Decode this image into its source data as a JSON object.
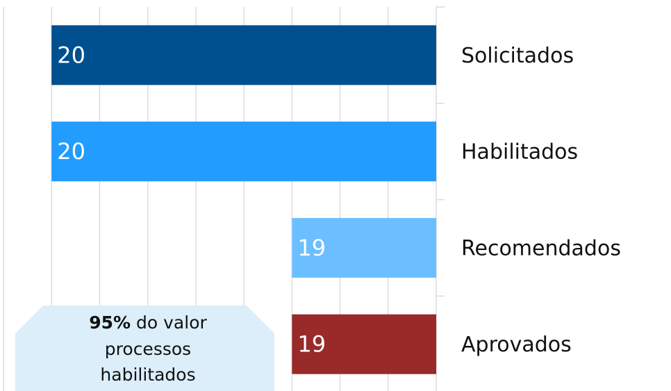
{
  "chart_data": {
    "type": "bar",
    "orientation": "horizontal",
    "categories": [
      "Solicitados",
      "Habilitados",
      "Recomendados",
      "Aprovados"
    ],
    "values": [
      20,
      20,
      19,
      19
    ],
    "colors": [
      "#004f8f",
      "#229cff",
      "#6cbfff",
      "#982a2a"
    ],
    "xlim": [
      18.4,
      20.2
    ],
    "x_reversed": true,
    "xticks": [
      18.4,
      18.6,
      18.8,
      19.0,
      19.2,
      19.4,
      19.6,
      19.8,
      20.0,
      20.2
    ],
    "grid": true,
    "annotation": [
      "95%",
      "do valor",
      "processos",
      "habilitados"
    ]
  }
}
